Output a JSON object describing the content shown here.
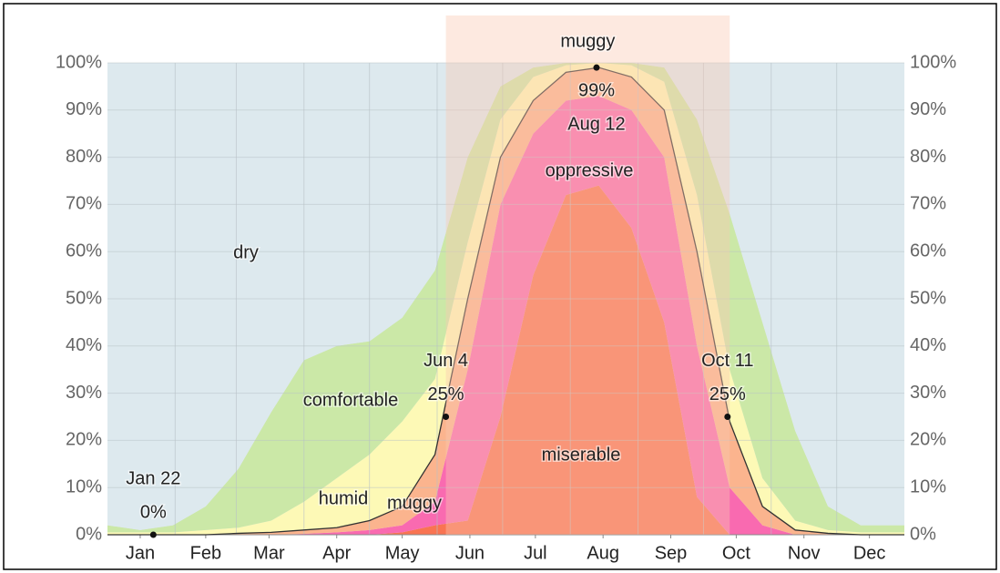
{
  "chart_data": {
    "type": "stacked_area",
    "x": [
      0,
      15,
      30,
      45,
      60,
      75,
      90,
      105,
      120,
      135,
      150,
      165,
      180,
      195,
      210,
      225,
      240,
      255,
      270,
      285,
      300,
      315,
      330,
      345,
      360,
      365
    ],
    "xlim": [
      0,
      365
    ],
    "xticks": [
      {
        "value": 15,
        "label": "Jan"
      },
      {
        "value": 45,
        "label": "Feb"
      },
      {
        "value": 74,
        "label": "Mar"
      },
      {
        "value": 105,
        "label": "Apr"
      },
      {
        "value": 135,
        "label": "May"
      },
      {
        "value": 166,
        "label": "Jun"
      },
      {
        "value": 196,
        "label": "Jul"
      },
      {
        "value": 227,
        "label": "Aug"
      },
      {
        "value": 258,
        "label": "Sep"
      },
      {
        "value": 288,
        "label": "Oct"
      },
      {
        "value": 319,
        "label": "Nov"
      },
      {
        "value": 349,
        "label": "Dec"
      }
    ],
    "ylim": [
      0,
      100
    ],
    "yticks": [
      {
        "value": 0,
        "label": "0%"
      },
      {
        "value": 10,
        "label": "10%"
      },
      {
        "value": 20,
        "label": "20%"
      },
      {
        "value": 30,
        "label": "30%"
      },
      {
        "value": 40,
        "label": "40%"
      },
      {
        "value": 50,
        "label": "50%"
      },
      {
        "value": 60,
        "label": "60%"
      },
      {
        "value": 70,
        "label": "70%"
      },
      {
        "value": 80,
        "label": "80%"
      },
      {
        "value": 90,
        "label": "90%"
      },
      {
        "value": 100,
        "label": "100%"
      }
    ],
    "grid": true,
    "series": [
      {
        "name": "miserable",
        "color": "#f97452",
        "values": [
          0,
          0,
          0,
          0,
          0,
          0,
          0,
          0,
          0,
          0.5,
          2,
          3,
          25,
          55,
          72,
          74,
          65,
          45,
          8,
          0,
          0,
          0,
          0,
          0,
          0,
          0
        ]
      },
      {
        "name": "oppressive",
        "color": "#f96ab0",
        "values": [
          0,
          0,
          0,
          0,
          0,
          0,
          0.2,
          0.5,
          1,
          1.5,
          5,
          32,
          45,
          30,
          20,
          19,
          25,
          35,
          32,
          10,
          2,
          0,
          0,
          0,
          0,
          0
        ]
      },
      {
        "name": "muggy",
        "color": "#fbb48e",
        "values": [
          0,
          0,
          0,
          0,
          0.3,
          0.5,
          0.8,
          1,
          2,
          4,
          10,
          15,
          10,
          7,
          6,
          6,
          7,
          10,
          20,
          14,
          4,
          1,
          0.3,
          0,
          0,
          0
        ]
      },
      {
        "name": "humid",
        "color": "#fdf9b6",
        "values": [
          0.5,
          0.5,
          0.5,
          1,
          1.2,
          2.5,
          6,
          10.5,
          14,
          18,
          16,
          12,
          8,
          5,
          1.5,
          1,
          2.5,
          6,
          12,
          11,
          6,
          2,
          0.7,
          0.5,
          0.5,
          0.5
        ]
      },
      {
        "name": "comfortable",
        "color": "#cbe8a7",
        "values": [
          1.5,
          0.5,
          1.5,
          5,
          12.5,
          23,
          30,
          28,
          24,
          22,
          23,
          18,
          7,
          2,
          0.5,
          0,
          0.5,
          3,
          16,
          33,
          33,
          19,
          5,
          1.5,
          1.5,
          1.5
        ]
      },
      {
        "name": "dry",
        "color": "#dde9ee",
        "values": [
          98,
          99,
          98,
          94,
          86,
          74,
          63,
          60,
          59,
          54,
          44,
          20,
          5,
          1,
          0,
          0,
          0,
          1,
          12,
          32,
          55,
          78,
          94,
          98,
          98,
          98
        ]
      }
    ],
    "highlight": {
      "label": "muggy",
      "x": [
        155,
        285
      ]
    },
    "annotations": [
      {
        "label": "Jan 22",
        "value_label": "0%",
        "x": 21,
        "y": 0
      },
      {
        "label": "Jun 4",
        "value_label": "25%",
        "x": 155,
        "y": 25
      },
      {
        "label": "Aug 12",
        "value_label": "99%",
        "x": 224,
        "y": 99
      },
      {
        "label": "Oct 11",
        "value_label": "25%",
        "x": 284,
        "y": 25
      }
    ]
  }
}
